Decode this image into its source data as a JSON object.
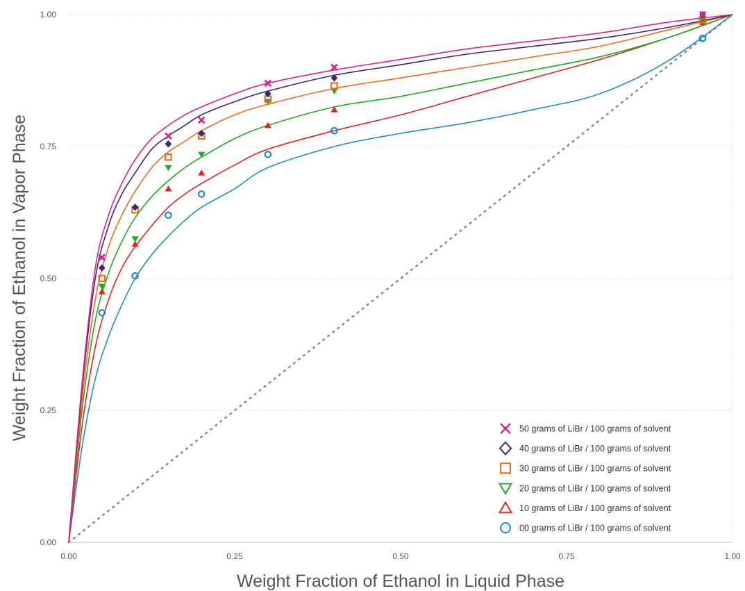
{
  "chart_data": {
    "type": "scatter",
    "title": "",
    "xlabel": "Weight Fraction of Ethanol in Liquid Phase",
    "ylabel": "Weight Fraction of Ethanol in Vapor Phase",
    "xlim": [
      0,
      1
    ],
    "ylim": [
      0,
      1
    ],
    "x_ticks": [
      "0.00",
      "0.25",
      "0.50",
      "0.75",
      "1.00"
    ],
    "y_ticks": [
      "0.00",
      "0.25",
      "0.50",
      "0.75",
      "1.00"
    ],
    "grid": "horizontal dotted",
    "legend_position": "bottom-right",
    "reference_line": {
      "style": "dotted",
      "color": "#888888",
      "from": [
        0,
        0
      ],
      "to": [
        1,
        1
      ]
    },
    "series": [
      {
        "name": "50 grams of LiBr / 100 grams of solvent",
        "marker": "x",
        "color": "#E0218A",
        "points": [
          [
            0.05,
            0.54
          ],
          [
            0.15,
            0.77
          ],
          [
            0.2,
            0.8
          ],
          [
            0.3,
            0.87
          ],
          [
            0.4,
            0.9
          ],
          [
            0.955,
            1.0
          ]
        ],
        "curve": [
          [
            0,
            0
          ],
          [
            0.02,
            0.3
          ],
          [
            0.04,
            0.52
          ],
          [
            0.06,
            0.62
          ],
          [
            0.08,
            0.68
          ],
          [
            0.1,
            0.725
          ],
          [
            0.125,
            0.765
          ],
          [
            0.15,
            0.79
          ],
          [
            0.175,
            0.81
          ],
          [
            0.2,
            0.825
          ],
          [
            0.25,
            0.85
          ],
          [
            0.3,
            0.87
          ],
          [
            0.4,
            0.895
          ],
          [
            0.5,
            0.915
          ],
          [
            0.6,
            0.935
          ],
          [
            0.7,
            0.95
          ],
          [
            0.8,
            0.965
          ],
          [
            0.9,
            0.985
          ],
          [
            1.0,
            1.0
          ]
        ]
      },
      {
        "name": "40 grams of LiBr / 100 grams of solvent",
        "marker": "diamond",
        "color": "#3D2670",
        "points": [
          [
            0.05,
            0.52
          ],
          [
            0.1,
            0.635
          ],
          [
            0.15,
            0.755
          ],
          [
            0.2,
            0.775
          ],
          [
            0.3,
            0.85
          ],
          [
            0.4,
            0.88
          ],
          [
            0.955,
            1.0
          ]
        ],
        "curve": [
          [
            0,
            0
          ],
          [
            0.02,
            0.29
          ],
          [
            0.04,
            0.5
          ],
          [
            0.06,
            0.6
          ],
          [
            0.08,
            0.66
          ],
          [
            0.1,
            0.7
          ],
          [
            0.125,
            0.745
          ],
          [
            0.15,
            0.77
          ],
          [
            0.175,
            0.79
          ],
          [
            0.2,
            0.81
          ],
          [
            0.25,
            0.835
          ],
          [
            0.3,
            0.855
          ],
          [
            0.4,
            0.885
          ],
          [
            0.5,
            0.905
          ],
          [
            0.6,
            0.925
          ],
          [
            0.7,
            0.94
          ],
          [
            0.8,
            0.955
          ],
          [
            0.9,
            0.975
          ],
          [
            1.0,
            1.0
          ]
        ]
      },
      {
        "name": "30 grams of LiBr / 100 grams of solvent",
        "marker": "square",
        "color": "#F26B1D",
        "points": [
          [
            0.05,
            0.5
          ],
          [
            0.1,
            0.63
          ],
          [
            0.15,
            0.73
          ],
          [
            0.2,
            0.77
          ],
          [
            0.3,
            0.84
          ],
          [
            0.4,
            0.865
          ],
          [
            0.955,
            0.99
          ]
        ],
        "curve": [
          [
            0,
            0
          ],
          [
            0.02,
            0.27
          ],
          [
            0.04,
            0.46
          ],
          [
            0.06,
            0.56
          ],
          [
            0.08,
            0.62
          ],
          [
            0.1,
            0.665
          ],
          [
            0.125,
            0.71
          ],
          [
            0.15,
            0.74
          ],
          [
            0.175,
            0.76
          ],
          [
            0.2,
            0.78
          ],
          [
            0.25,
            0.81
          ],
          [
            0.3,
            0.83
          ],
          [
            0.4,
            0.86
          ],
          [
            0.5,
            0.88
          ],
          [
            0.6,
            0.9
          ],
          [
            0.7,
            0.92
          ],
          [
            0.8,
            0.94
          ],
          [
            0.9,
            0.97
          ],
          [
            1.0,
            1.0
          ]
        ]
      },
      {
        "name": "20 grams of LiBr / 100 grams of solvent",
        "marker": "triangle-down",
        "color": "#1FAA1F",
        "points": [
          [
            0.05,
            0.485
          ],
          [
            0.1,
            0.575
          ],
          [
            0.15,
            0.71
          ],
          [
            0.2,
            0.735
          ],
          [
            0.3,
            0.835
          ],
          [
            0.4,
            0.855
          ],
          [
            0.955,
            0.99
          ]
        ],
        "curve": [
          [
            0,
            0
          ],
          [
            0.02,
            0.25
          ],
          [
            0.04,
            0.42
          ],
          [
            0.06,
            0.51
          ],
          [
            0.08,
            0.57
          ],
          [
            0.1,
            0.615
          ],
          [
            0.125,
            0.655
          ],
          [
            0.15,
            0.685
          ],
          [
            0.175,
            0.71
          ],
          [
            0.2,
            0.73
          ],
          [
            0.25,
            0.765
          ],
          [
            0.3,
            0.79
          ],
          [
            0.4,
            0.825
          ],
          [
            0.5,
            0.845
          ],
          [
            0.6,
            0.87
          ],
          [
            0.7,
            0.895
          ],
          [
            0.8,
            0.92
          ],
          [
            0.9,
            0.955
          ],
          [
            1.0,
            1.0
          ]
        ]
      },
      {
        "name": "10 grams of LiBr / 100 grams of solvent",
        "marker": "triangle-up",
        "color": "#E8231F",
        "points": [
          [
            0.05,
            0.475
          ],
          [
            0.1,
            0.565
          ],
          [
            0.15,
            0.67
          ],
          [
            0.2,
            0.7
          ],
          [
            0.3,
            0.79
          ],
          [
            0.4,
            0.82
          ],
          [
            0.955,
            0.985
          ]
        ],
        "curve": [
          [
            0,
            0
          ],
          [
            0.02,
            0.22
          ],
          [
            0.04,
            0.37
          ],
          [
            0.06,
            0.46
          ],
          [
            0.08,
            0.52
          ],
          [
            0.1,
            0.56
          ],
          [
            0.125,
            0.6
          ],
          [
            0.15,
            0.635
          ],
          [
            0.175,
            0.66
          ],
          [
            0.2,
            0.68
          ],
          [
            0.25,
            0.715
          ],
          [
            0.3,
            0.745
          ],
          [
            0.4,
            0.78
          ],
          [
            0.5,
            0.81
          ],
          [
            0.6,
            0.845
          ],
          [
            0.7,
            0.88
          ],
          [
            0.8,
            0.915
          ],
          [
            0.9,
            0.955
          ],
          [
            1.0,
            1.0
          ]
        ]
      },
      {
        "name": "00 grams of LiBr / 100 grams of solvent",
        "marker": "circle",
        "color": "#1F8CC9",
        "points": [
          [
            0.05,
            0.435
          ],
          [
            0.1,
            0.505
          ],
          [
            0.15,
            0.62
          ],
          [
            0.2,
            0.66
          ],
          [
            0.3,
            0.735
          ],
          [
            0.4,
            0.78
          ],
          [
            0.955,
            0.955
          ]
        ],
        "curve": [
          [
            0,
            0
          ],
          [
            0.02,
            0.18
          ],
          [
            0.04,
            0.31
          ],
          [
            0.06,
            0.39
          ],
          [
            0.08,
            0.45
          ],
          [
            0.1,
            0.5
          ],
          [
            0.125,
            0.545
          ],
          [
            0.15,
            0.58
          ],
          [
            0.175,
            0.61
          ],
          [
            0.2,
            0.635
          ],
          [
            0.25,
            0.67
          ],
          [
            0.3,
            0.71
          ],
          [
            0.4,
            0.75
          ],
          [
            0.5,
            0.775
          ],
          [
            0.6,
            0.795
          ],
          [
            0.7,
            0.82
          ],
          [
            0.8,
            0.85
          ],
          [
            0.9,
            0.91
          ],
          [
            1.0,
            1.0
          ]
        ]
      }
    ]
  }
}
